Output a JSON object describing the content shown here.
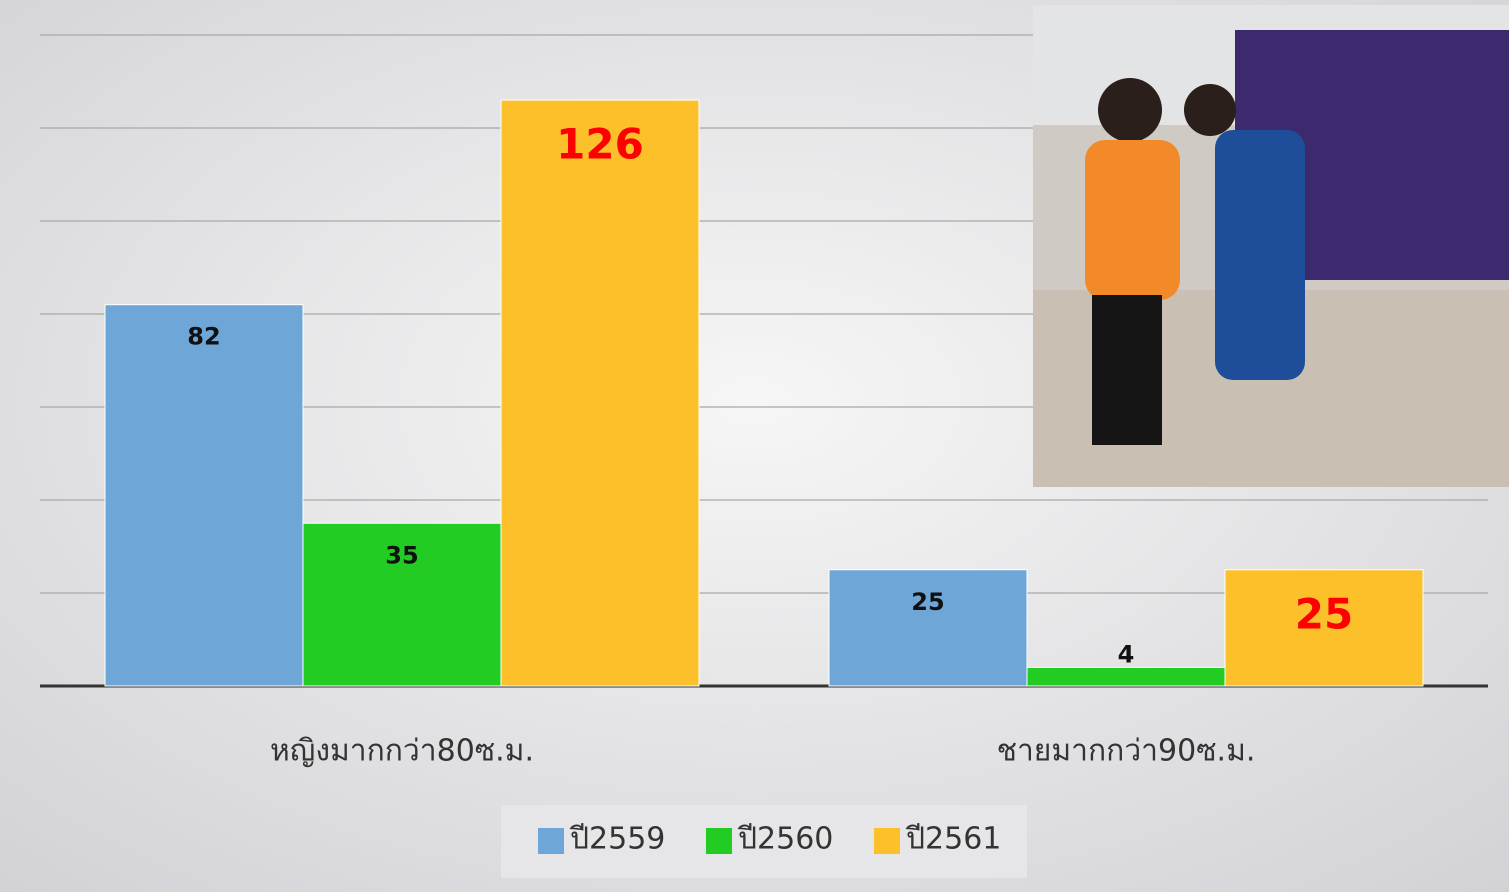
{
  "chart_data": {
    "type": "bar",
    "categories": [
      "หญิงมากกว่า80ซ.ม.",
      "ชายมากกว่า90ซ.ม."
    ],
    "series": [
      {
        "name": "ปี2559",
        "color": "#6fa6d8",
        "values": [
          82,
          25
        ],
        "label_color": "#111111"
      },
      {
        "name": "ปี2560",
        "color": "#22cc22",
        "values": [
          35,
          4
        ],
        "label_color": "#111111"
      },
      {
        "name": "ปี2561",
        "color": "#fcc12a",
        "values": [
          126,
          25
        ],
        "label_color": "#ff0000"
      }
    ],
    "ylim": [
      0,
      140
    ],
    "yticks": [
      0,
      20,
      40,
      60,
      80,
      100,
      120,
      140
    ],
    "grid": true,
    "legend": "bottom"
  }
}
